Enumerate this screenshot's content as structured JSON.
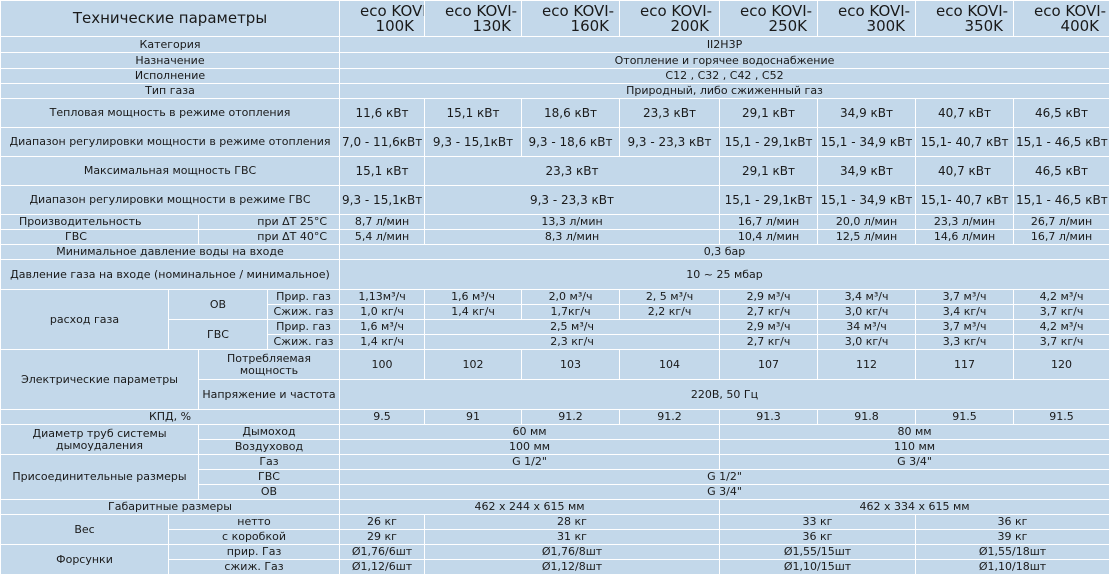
{
  "header": {
    "title": "Технические параметры",
    "models": [
      {
        "l1": "eco KOVI-",
        "l2": "100K"
      },
      {
        "l1": "eco KOVI-",
        "l2": "130K"
      },
      {
        "l1": "eco KOVI-",
        "l2": "160K"
      },
      {
        "l1": "eco KOVI-",
        "l2": "200K"
      },
      {
        "l1": "eco KOVI-",
        "l2": "250K"
      },
      {
        "l1": "eco KOVI-",
        "l2": "300K"
      },
      {
        "l1": "eco KOVI-",
        "l2": "350K"
      },
      {
        "l1": "eco KOVI-",
        "l2": "400K"
      }
    ]
  },
  "general": {
    "category": {
      "label": "Категория",
      "value": "II2H3P"
    },
    "purpose": {
      "label": "Назначение",
      "value": "Отопление и горячее водоснабжение"
    },
    "version": {
      "label": "Исполнение",
      "value": "C12 , C32 , C42 , C52"
    },
    "gas_type": {
      "label": "Тип газа",
      "value": "Природный,  либо сжиженный газ"
    }
  },
  "heat_power": {
    "label": "Тепловая мощность в режиме отопления",
    "values": [
      "11,6 кВт",
      "15,1 кВт",
      "18,6 кВт",
      "23,3 кВт",
      "29,1 кВт",
      "34,9 кВт",
      "40,7 кВт",
      "46,5 кВт"
    ]
  },
  "heat_range": {
    "label": "Диапазон регулировки мощности в режиме отопления",
    "values": [
      "7,0 - 11,6кВт",
      "9,3 - 15,1кВт",
      "9,3 - 18,6 кВт",
      "9,3 - 23,3 кВт",
      "15,1 - 29,1кВт",
      "15,1 - 34,9 кВт",
      "15,1- 40,7 кВт",
      "15,1 - 46,5 кВт"
    ]
  },
  "dhw_max": {
    "label": "Максимальная мощность ГВС",
    "values": [
      "15,1 кВт",
      "23,3 кВт",
      "29,1 кВт",
      "34,9 кВт",
      "40,7 кВт",
      "46,5 кВт"
    ]
  },
  "dhw_range": {
    "label": "Диапазон регулировки мощности в режиме ГВС",
    "values": [
      "9,3 - 15,1кВт",
      "9,3 - 23,3 кВт",
      "15,1 - 29,1кВт",
      "15,1 - 34,9 кВт",
      "15,1- 40,7 кВт",
      "15,1 - 46,5 кВт"
    ]
  },
  "dhw_capacity": {
    "label_top": "Производительность",
    "label_bottom": "ГВС",
    "dt25": {
      "label": "при ΔT 25°С",
      "values": [
        "8,7 л/мин",
        "13,3 л/мин",
        "16,7 л/мин",
        "20,0 л/мин",
        "23,3 л/мин",
        "26,7 л/мин"
      ]
    },
    "dt40": {
      "label": "при ΔT 40°С",
      "values": [
        "5,4 л/мин",
        "8,3 л/мин",
        "10,4 л/мин",
        "12,5 л/мин",
        "14,6 л/мин",
        "16,7 л/мин"
      ]
    }
  },
  "min_water_pressure": {
    "label": "Минимальное давление воды на входе",
    "value": "0,3 бар"
  },
  "gas_pressure": {
    "label": "Давление газа на входе (номинальное / минимальное)",
    "value": "10 ~ 25 мбар"
  },
  "gas_consumption": {
    "label": "расход газа",
    "ov": {
      "label": "ОВ",
      "natural": {
        "label": "Прир. газ",
        "values": [
          "1,13м³/ч",
          "1,6 м³/ч",
          "2,0 м³/ч",
          "2, 5 м³/ч",
          "2,9 м³/ч",
          "3,4 м³/ч",
          "3,7 м³/ч",
          "4,2 м³/ч"
        ]
      },
      "lpg": {
        "label": "Сжиж. газ",
        "values": [
          "1,0 кг/ч",
          "1,4 кг/ч",
          "1,7кг/ч",
          "2,2 кг/ч",
          "2,7 кг/ч",
          "3,0 кг/ч",
          "3,4 кг/ч",
          "3,7 кг/ч"
        ]
      }
    },
    "gvs": {
      "label": "ГВС",
      "natural": {
        "label": "Прир. газ",
        "values": [
          "1,6 м³/ч",
          "2,5 м³/ч",
          "2,9 м³/ч",
          "34 м³/ч",
          "3,7 м³/ч",
          "4,2 м³/ч"
        ]
      },
      "lpg": {
        "label": "Сжиж. газ",
        "values": [
          "1,4 кг/ч",
          "2,3 кг/ч",
          "2,7 кг/ч",
          "3,0 кг/ч",
          "3,3 кг/ч",
          "3,7 кг/ч"
        ]
      }
    }
  },
  "electrical": {
    "label": "Электрические параметры",
    "consumption": {
      "label": "Потребляемая мощность",
      "values": [
        "100",
        "102",
        "103",
        "104",
        "107",
        "112",
        "117",
        "120"
      ]
    },
    "voltage": {
      "label": "Напряжение и частота",
      "value": "220В, 50 Гц"
    }
  },
  "efficiency": {
    "label": "КПД, %",
    "values": [
      "9.5",
      "91",
      "91.2",
      "91.2",
      "91.3",
      "91.8",
      "91.5",
      "91.5"
    ]
  },
  "flue": {
    "label": "Диаметр труб системы дымоудаления",
    "chimney": {
      "label": "Дымоход",
      "values": [
        "60 мм",
        "80 мм"
      ]
    },
    "air": {
      "label": "Воздуховод",
      "values": [
        "100 мм",
        "110 мм"
      ]
    }
  },
  "connections": {
    "label": "Присоединительные размеры",
    "gas": {
      "label": "Газ",
      "values": [
        "G 1/2\"",
        "G 3/4\""
      ]
    },
    "gvs": {
      "label": "ГВС",
      "value": "G 1/2\""
    },
    "ov": {
      "label": "ОВ",
      "value": "G 3/4\""
    }
  },
  "dimensions": {
    "label": "Габаритные размеры",
    "values": [
      "462 x 244 x 615 мм",
      "462 x 334 x 615 мм"
    ]
  },
  "weight": {
    "label": "Вес",
    "net": {
      "label": "нетто",
      "values": [
        "26 кг",
        "28 кг",
        "33 кг",
        "36 кг"
      ]
    },
    "boxed": {
      "label": "с коробкой",
      "values": [
        "29 кг",
        "31 кг",
        "36 кг",
        "39 кг"
      ]
    }
  },
  "nozzles": {
    "label": "Форсунки",
    "natural": {
      "label": "прир. Газ",
      "values": [
        "Ø1,76/6шт",
        "Ø1,76/8шт",
        "Ø1,55/15шт",
        "Ø1,55/18шт"
      ]
    },
    "lpg": {
      "label": "сжиж. Газ",
      "values": [
        "Ø1,12/6шт",
        "Ø1,12/8шт",
        "Ø1,10/15шт",
        "Ø1,10/18шт"
      ]
    }
  }
}
